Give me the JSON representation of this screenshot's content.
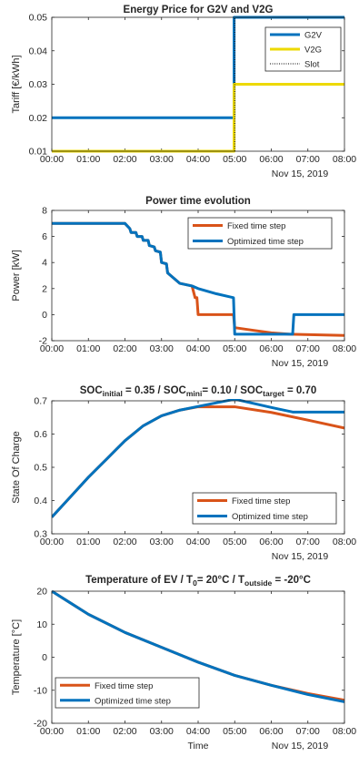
{
  "colors": {
    "g2v": "#0072BD",
    "v2g": "#EDD900",
    "fixed": "#D95319",
    "optimized": "#0072BD",
    "slot": "#000000"
  },
  "x_ticks": [
    "00:00",
    "01:00",
    "02:00",
    "03:00",
    "04:00",
    "05:00",
    "06:00",
    "07:00",
    "08:00"
  ],
  "date_label": "Nov 15, 2019",
  "chart_data": [
    {
      "type": "line",
      "title": "Energy Price for G2V and V2G",
      "title_parts": [
        {
          "text": "Energy Price for G2V and V2G",
          "sub": false
        }
      ],
      "ylabel": "Tariff [€/kWh]",
      "xlabel": "",
      "xlim": [
        "00:00",
        "08:00"
      ],
      "ylim": [
        0.01,
        0.05
      ],
      "y_ticks": [
        "0.01",
        "0.02",
        "0.03",
        "0.04",
        "0.05"
      ],
      "legend": {
        "placement": "top-right",
        "entries": [
          "G2V",
          "V2G",
          "Slot"
        ]
      },
      "series": [
        {
          "name": "G2V",
          "style": "step",
          "points": [
            [
              "00:00",
              0.02
            ],
            [
              "04:59",
              0.02
            ],
            [
              "04:59",
              0.05
            ],
            [
              "08:00",
              0.05
            ]
          ]
        },
        {
          "name": "V2G",
          "style": "step",
          "points": [
            [
              "00:00",
              0.01
            ],
            [
              "04:59",
              0.01
            ],
            [
              "04:59",
              0.03
            ],
            [
              "08:00",
              0.03
            ]
          ]
        },
        {
          "name": "Slot",
          "style": "dotted",
          "points": [
            [
              "05:00",
              0.01
            ],
            [
              "05:00",
              0.05
            ]
          ]
        }
      ]
    },
    {
      "type": "line",
      "title": "Power time evolution",
      "title_parts": [
        {
          "text": "Power time evolution",
          "sub": false
        }
      ],
      "ylabel": "Power [kW]",
      "xlabel": "",
      "xlim": [
        "00:00",
        "08:00"
      ],
      "ylim": [
        -2,
        8
      ],
      "y_ticks": [
        "-2",
        "0",
        "2",
        "4",
        "6",
        "8"
      ],
      "legend": {
        "placement": "top-right",
        "entries": [
          "Fixed time step",
          "Optimized time step"
        ]
      },
      "series": [
        {
          "name": "Fixed time step",
          "style": "line",
          "points": [
            [
              "00:00",
              7
            ],
            [
              "02:00",
              7
            ],
            [
              "02:08",
              6.6
            ],
            [
              "02:10",
              6.3
            ],
            [
              "02:18",
              6.3
            ],
            [
              "02:20",
              6.0
            ],
            [
              "02:28",
              6.0
            ],
            [
              "02:30",
              5.7
            ],
            [
              "02:38",
              5.7
            ],
            [
              "02:40",
              5.3
            ],
            [
              "02:48",
              5.2
            ],
            [
              "02:50",
              4.9
            ],
            [
              "02:58",
              4.8
            ],
            [
              "03:00",
              4.0
            ],
            [
              "03:08",
              3.9
            ],
            [
              "03:10",
              3.2
            ],
            [
              "03:30",
              2.4
            ],
            [
              "03:50",
              2.2
            ],
            [
              "03:55",
              1.3
            ],
            [
              "03:58",
              1.3
            ],
            [
              "04:00",
              0
            ],
            [
              "04:58",
              0
            ],
            [
              "05:00",
              -1.0
            ],
            [
              "05:30",
              -1.2
            ],
            [
              "06:00",
              -1.4
            ],
            [
              "06:30",
              -1.5
            ],
            [
              "08:00",
              -1.6
            ]
          ]
        },
        {
          "name": "Optimized time step",
          "style": "line",
          "points": [
            [
              "00:00",
              7
            ],
            [
              "02:00",
              7
            ],
            [
              "02:08",
              6.6
            ],
            [
              "02:10",
              6.3
            ],
            [
              "02:18",
              6.3
            ],
            [
              "02:20",
              6.0
            ],
            [
              "02:28",
              6.0
            ],
            [
              "02:30",
              5.7
            ],
            [
              "02:38",
              5.7
            ],
            [
              "02:40",
              5.3
            ],
            [
              "02:48",
              5.2
            ],
            [
              "02:50",
              4.9
            ],
            [
              "02:58",
              4.8
            ],
            [
              "03:00",
              4.0
            ],
            [
              "03:08",
              3.9
            ],
            [
              "03:10",
              3.2
            ],
            [
              "03:30",
              2.4
            ],
            [
              "03:50",
              2.2
            ],
            [
              "04:00",
              2.0
            ],
            [
              "04:30",
              1.6
            ],
            [
              "04:58",
              1.3
            ],
            [
              "05:00",
              -1.5
            ],
            [
              "06:35",
              -1.5
            ],
            [
              "06:37",
              0
            ],
            [
              "08:00",
              0
            ]
          ]
        }
      ]
    },
    {
      "type": "line",
      "title": "SOC_initial = 0.35 / SOC_mini = 0.10 / SOC_target = 0.70",
      "title_parts": [
        {
          "text": "SOC",
          "sub": false
        },
        {
          "text": "initial",
          "sub": true
        },
        {
          "text": " = 0.35 / SOC",
          "sub": false
        },
        {
          "text": "mini",
          "sub": true
        },
        {
          "text": "= 0.10 / SOC",
          "sub": false
        },
        {
          "text": "target",
          "sub": true
        },
        {
          "text": " = 0.70",
          "sub": false
        }
      ],
      "ylabel": "State Of Charge",
      "xlabel": "",
      "xlim": [
        "00:00",
        "08:00"
      ],
      "ylim": [
        0.3,
        0.7
      ],
      "y_ticks": [
        "0.3",
        "0.4",
        "0.5",
        "0.6",
        "0.7"
      ],
      "legend": {
        "placement": "bottom-right",
        "entries": [
          "Fixed time step",
          "Optimized time step"
        ]
      },
      "series": [
        {
          "name": "Fixed time step",
          "style": "line",
          "points": [
            [
              "00:00",
              0.35
            ],
            [
              "00:30",
              0.41
            ],
            [
              "01:00",
              0.47
            ],
            [
              "01:30",
              0.525
            ],
            [
              "02:00",
              0.58
            ],
            [
              "02:30",
              0.625
            ],
            [
              "03:00",
              0.655
            ],
            [
              "03:30",
              0.672
            ],
            [
              "04:00",
              0.682
            ],
            [
              "05:00",
              0.682
            ],
            [
              "06:00",
              0.665
            ],
            [
              "07:00",
              0.642
            ],
            [
              "08:00",
              0.618
            ]
          ]
        },
        {
          "name": "Optimized time step",
          "style": "line",
          "points": [
            [
              "00:00",
              0.35
            ],
            [
              "00:30",
              0.41
            ],
            [
              "01:00",
              0.47
            ],
            [
              "01:30",
              0.525
            ],
            [
              "02:00",
              0.58
            ],
            [
              "02:30",
              0.625
            ],
            [
              "03:00",
              0.655
            ],
            [
              "03:30",
              0.672
            ],
            [
              "04:00",
              0.683
            ],
            [
              "04:30",
              0.694
            ],
            [
              "05:00",
              0.705
            ],
            [
              "06:00",
              0.68
            ],
            [
              "06:36",
              0.666
            ],
            [
              "08:00",
              0.666
            ]
          ]
        }
      ]
    },
    {
      "type": "line",
      "title": "Temperature of EV / T_0= 20°C / T_outside = -20°C",
      "title_parts": [
        {
          "text": "Temperature of EV / T",
          "sub": false
        },
        {
          "text": "0",
          "sub": true
        },
        {
          "text": "= 20°C / T",
          "sub": false
        },
        {
          "text": "outside",
          "sub": true
        },
        {
          "text": " = -20°C",
          "sub": false
        }
      ],
      "ylabel": "Temperature [°C]",
      "xlabel": "Time",
      "xlim": [
        "00:00",
        "08:00"
      ],
      "ylim": [
        -20,
        20
      ],
      "y_ticks": [
        "-20",
        "-10",
        "0",
        "10",
        "20"
      ],
      "legend": {
        "placement": "bottom-left",
        "entries": [
          "Fixed time step",
          "Optimized time step"
        ]
      },
      "series": [
        {
          "name": "Fixed time step",
          "style": "line",
          "points": [
            [
              "00:00",
              20
            ],
            [
              "00:30",
              16.5
            ],
            [
              "01:00",
              13
            ],
            [
              "02:00",
              7.5
            ],
            [
              "03:00",
              3
            ],
            [
              "04:00",
              -1.5
            ],
            [
              "05:00",
              -5.5
            ],
            [
              "06:00",
              -8.5
            ],
            [
              "07:00",
              -11
            ],
            [
              "08:00",
              -13
            ]
          ]
        },
        {
          "name": "Optimized time step",
          "style": "line",
          "points": [
            [
              "00:00",
              20
            ],
            [
              "00:30",
              16.5
            ],
            [
              "01:00",
              13
            ],
            [
              "02:00",
              7.5
            ],
            [
              "03:00",
              3
            ],
            [
              "04:00",
              -1.5
            ],
            [
              "05:00",
              -5.5
            ],
            [
              "06:00",
              -8.5
            ],
            [
              "07:00",
              -11.3
            ],
            [
              "08:00",
              -13.5
            ]
          ]
        }
      ]
    }
  ]
}
